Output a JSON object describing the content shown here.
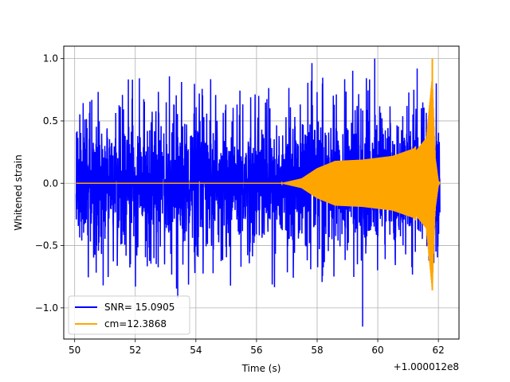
{
  "chart_data": {
    "type": "line",
    "title": "",
    "xlabel": "Time (s)",
    "ylabel": "Whitened strain",
    "x_offset_label": "+1.000012e8",
    "xlim": [
      49.64,
      62.68
    ],
    "ylim": [
      -1.25,
      1.1
    ],
    "xticks": [
      50,
      52,
      54,
      56,
      58,
      60,
      62
    ],
    "yticks": [
      -1.0,
      -0.5,
      0.0,
      0.5,
      1.0
    ],
    "xtick_labels": [
      "50",
      "52",
      "54",
      "56",
      "58",
      "60",
      "62"
    ],
    "ytick_labels": [
      "−1.0",
      "−0.5",
      "0.0",
      "0.5",
      "1.0"
    ],
    "grid": true,
    "legend_position": "lower-left",
    "series": [
      {
        "name": "SNR= 15.0905",
        "color": "#0000ff",
        "kind": "noise",
        "x_range": [
          50.05,
          62.05
        ],
        "typical_amplitude": 0.6,
        "y_max": 1.0,
        "y_min": -1.15
      },
      {
        "name": "cm=12.3868",
        "color": "#ffa500",
        "kind": "chirp",
        "x_range": [
          50.05,
          62.05
        ],
        "envelope": [
          {
            "x": 50.05,
            "y": 0.0
          },
          {
            "x": 56.8,
            "y": 0.0
          },
          {
            "x": 57.5,
            "y": 0.04
          },
          {
            "x": 58.0,
            "y": 0.12
          },
          {
            "x": 58.6,
            "y": 0.18
          },
          {
            "x": 59.5,
            "y": 0.19
          },
          {
            "x": 60.5,
            "y": 0.22
          },
          {
            "x": 61.2,
            "y": 0.28
          },
          {
            "x": 61.6,
            "y": 0.42
          },
          {
            "x": 61.8,
            "y": 1.0
          },
          {
            "x": 61.9,
            "y": 0.2
          },
          {
            "x": 62.0,
            "y": 0.02
          },
          {
            "x": 62.05,
            "y": 0.0
          }
        ],
        "peak": {
          "x": 61.8,
          "y_max": 1.0,
          "y_min": -0.86
        }
      }
    ]
  }
}
